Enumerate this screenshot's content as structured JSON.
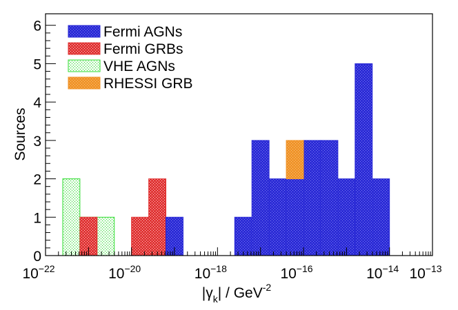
{
  "chart_data": {
    "type": "bar",
    "subtype": "stacked-histogram",
    "title": "",
    "xlabel": "|γk| / GeV-2",
    "xlabel_parts": {
      "prefix": "|",
      "symbol": "γ",
      "subscript": "k",
      "suffix": "| / GeV",
      "superscript": "-2"
    },
    "ylabel": "Sources",
    "x_scale": "log10",
    "x_range_log10": [
      -22,
      -13
    ],
    "ylim": [
      0,
      6.3
    ],
    "y_ticks": [
      0,
      1,
      2,
      3,
      4,
      5,
      6
    ],
    "x_ticks": [
      {
        "exp": -22,
        "base": "10",
        "power": "−22"
      },
      {
        "exp": -20,
        "base": "10",
        "power": "−20"
      },
      {
        "exp": -18,
        "base": "10",
        "power": "−18"
      },
      {
        "exp": -16,
        "base": "10",
        "power": "−16"
      },
      {
        "exp": -14,
        "base": "10",
        "power": "−14"
      },
      {
        "exp": -13,
        "base": "10",
        "power": "−13"
      }
    ],
    "bin_width_log10": 0.4,
    "series": [
      {
        "name": "Fermi AGNs",
        "color": "#2b2bd6",
        "bins": [
          {
            "lo": -19.2,
            "hi": -18.8,
            "count": 1
          },
          {
            "lo": -17.6,
            "hi": -17.2,
            "count": 1
          },
          {
            "lo": -17.2,
            "hi": -16.8,
            "count": 3
          },
          {
            "lo": -16.8,
            "hi": -16.4,
            "count": 2
          },
          {
            "lo": -16.4,
            "hi": -16.0,
            "count": 2
          },
          {
            "lo": -16.0,
            "hi": -15.6,
            "count": 3
          },
          {
            "lo": -15.6,
            "hi": -15.2,
            "count": 3
          },
          {
            "lo": -15.2,
            "hi": -14.8,
            "count": 2
          },
          {
            "lo": -14.8,
            "hi": -14.4,
            "count": 5
          },
          {
            "lo": -14.4,
            "hi": -14.0,
            "count": 2
          }
        ]
      },
      {
        "name": "Fermi GRBs",
        "color": "#e03535",
        "bins": [
          {
            "lo": -21.2,
            "hi": -20.8,
            "count": 1
          },
          {
            "lo": -20.0,
            "hi": -19.6,
            "count": 1
          },
          {
            "lo": -19.6,
            "hi": -19.2,
            "count": 2
          }
        ]
      },
      {
        "name": "VHE AGNs",
        "color": "#33dd33",
        "bins": [
          {
            "lo": -21.6,
            "hi": -21.2,
            "count": 2
          },
          {
            "lo": -21.2,
            "hi": -20.8,
            "count": 1
          },
          {
            "lo": -20.8,
            "hi": -20.4,
            "count": 1
          }
        ]
      },
      {
        "name": "RHESSI GRB",
        "color": "#f0942a",
        "bins": [
          {
            "lo": -16.4,
            "hi": -16.0,
            "count": 1
          }
        ]
      }
    ],
    "stack_order": [
      "Fermi AGNs",
      "RHESSI GRB"
    ],
    "legend": {
      "placement": "top-left",
      "entries": [
        "Fermi AGNs",
        "Fermi GRBs",
        "VHE AGNs",
        "RHESSI GRB"
      ]
    }
  }
}
